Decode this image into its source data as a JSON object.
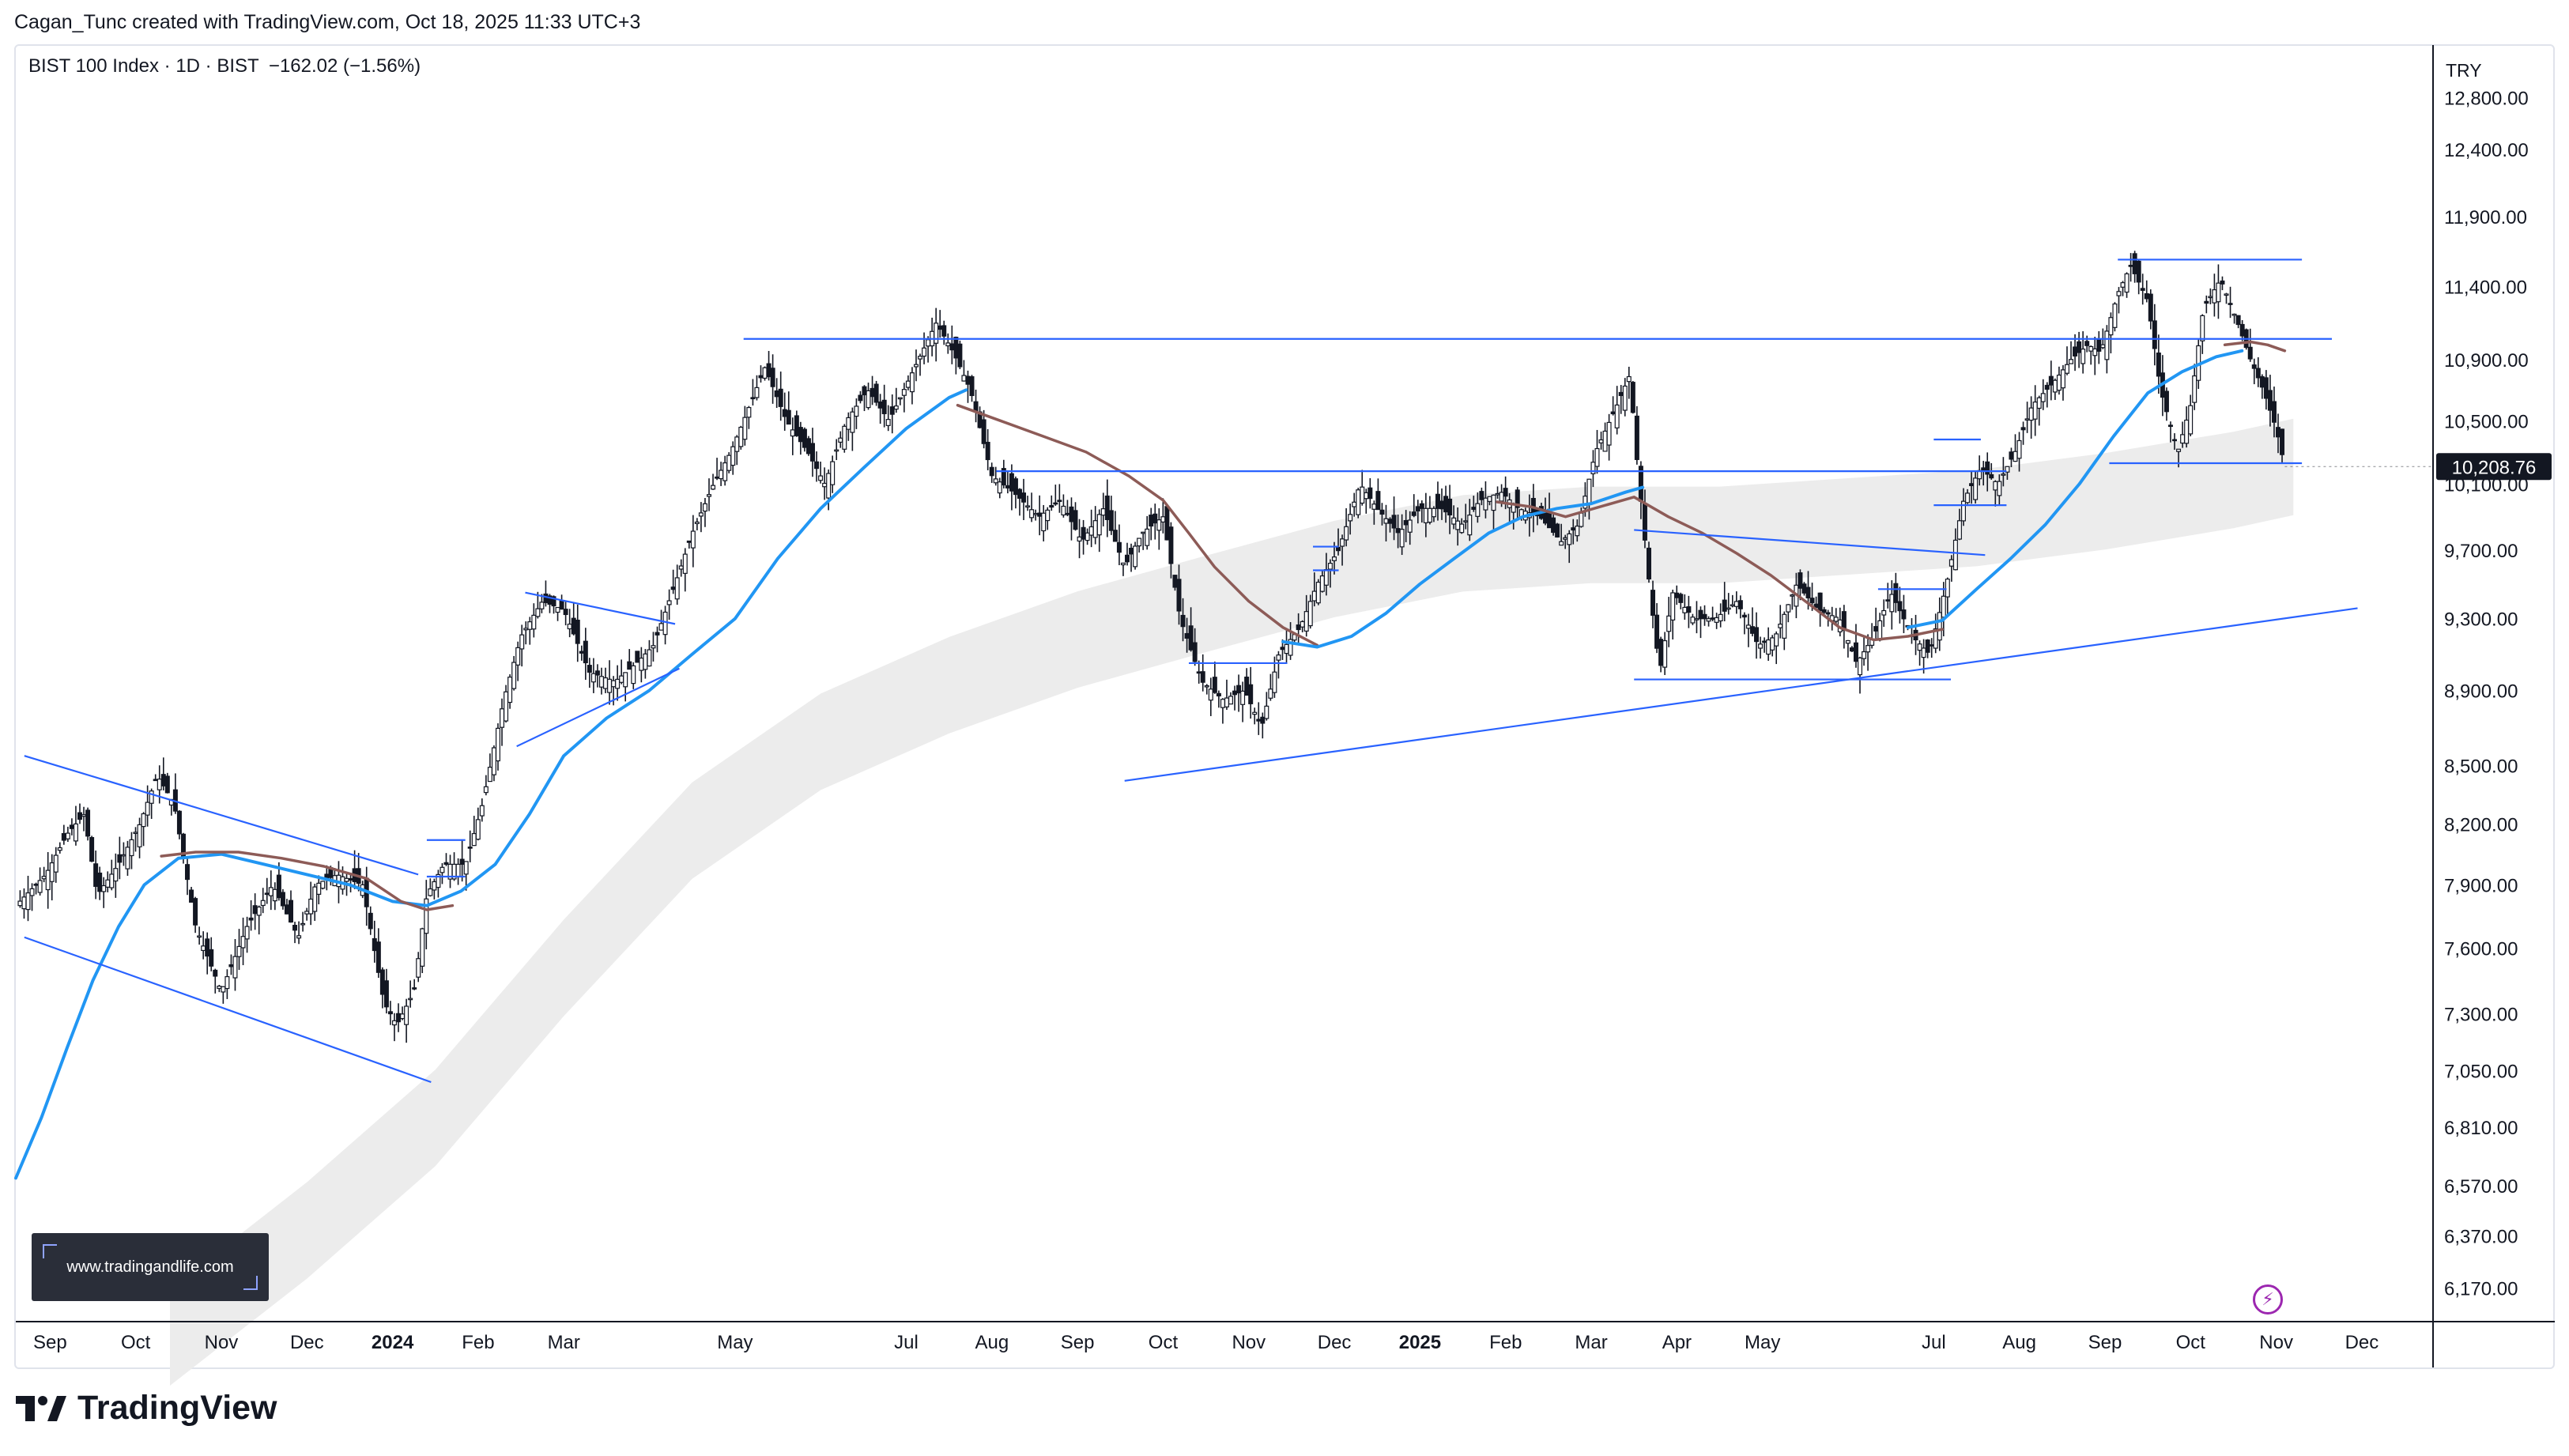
{
  "header": {
    "created_by": "Cagan_Tunc created with TradingView.com, Oct 18, 2025 11:33 UTC+3"
  },
  "legend": {
    "symbol": "BIST 100 Index · 1D · BIST",
    "change": "−162.02 (−1.56%)"
  },
  "currency": "TRY",
  "watermark_text": "www.tradingandlife.com",
  "brand": {
    "name": "TradingView"
  },
  "colors": {
    "ma_fast": "#2196f3",
    "ma_slow": "#8d5b57",
    "trendline": "#2962ff",
    "candle": "#131722",
    "band": "#ececec",
    "price_label_bg": "#131722"
  },
  "chart_data": {
    "type": "candlestick",
    "title": "BIST 100 Index · 1D · BIST",
    "scale": "log",
    "ylim": [
      6050,
      13200
    ],
    "y_ticks": [
      6170,
      6370,
      6570,
      6810,
      7050,
      7300,
      7600,
      7900,
      8200,
      8500,
      8900,
      9300,
      9700,
      10100,
      10500,
      10900,
      11400,
      11900,
      12400,
      12800
    ],
    "y_tick_labels": [
      "6,170.00",
      "6,370.00",
      "6,570.00",
      "6,810.00",
      "7,050.00",
      "7,300.00",
      "7,600.00",
      "7,900.00",
      "8,200.00",
      "8,500.00",
      "8,900.00",
      "9,300.00",
      "9,700.00",
      "10,100.00",
      "10,500.00",
      "10,900.00",
      "11,400.00",
      "11,900.00",
      "12,400.00",
      "12,800.00"
    ],
    "x_range_months": [
      -0.4,
      27.85
    ],
    "x_ticks": [
      {
        "label": "Sep",
        "m": 0
      },
      {
        "label": "Oct",
        "m": 1
      },
      {
        "label": "Nov",
        "m": 2
      },
      {
        "label": "Dec",
        "m": 3
      },
      {
        "label": "2024",
        "m": 4,
        "bold": true
      },
      {
        "label": "Feb",
        "m": 5
      },
      {
        "label": "Mar",
        "m": 6
      },
      {
        "label": "May",
        "m": 8
      },
      {
        "label": "Jul",
        "m": 10
      },
      {
        "label": "Aug",
        "m": 11
      },
      {
        "label": "Sep",
        "m": 12
      },
      {
        "label": "Oct",
        "m": 13
      },
      {
        "label": "Nov",
        "m": 14
      },
      {
        "label": "Dec",
        "m": 15
      },
      {
        "label": "2025",
        "m": 16,
        "bold": true
      },
      {
        "label": "Feb",
        "m": 17
      },
      {
        "label": "Mar",
        "m": 18
      },
      {
        "label": "Apr",
        "m": 19
      },
      {
        "label": "May",
        "m": 20
      },
      {
        "label": "Jul",
        "m": 22
      },
      {
        "label": "Aug",
        "m": 23
      },
      {
        "label": "Sep",
        "m": 24
      },
      {
        "label": "Oct",
        "m": 25
      },
      {
        "label": "Nov",
        "m": 26
      },
      {
        "label": "Dec",
        "m": 27
      }
    ],
    "last_price": 10208.76,
    "last_price_label": "10,208.76",
    "price_path": [
      [
        -0.4,
        7800
      ],
      [
        -0.05,
        7950
      ],
      [
        0.2,
        8150
      ],
      [
        0.4,
        8250
      ],
      [
        0.55,
        7850
      ],
      [
        0.8,
        8000
      ],
      [
        1.05,
        8200
      ],
      [
        1.25,
        8450
      ],
      [
        1.45,
        8300
      ],
      [
        1.7,
        7700
      ],
      [
        2.0,
        7400
      ],
      [
        2.3,
        7700
      ],
      [
        2.6,
        7900
      ],
      [
        2.9,
        7650
      ],
      [
        3.1,
        7900
      ],
      [
        3.35,
        7950
      ],
      [
        3.65,
        7900
      ],
      [
        3.9,
        7350
      ],
      [
        4.05,
        7250
      ],
      [
        4.25,
        7400
      ],
      [
        4.4,
        7850
      ],
      [
        4.6,
        8000
      ],
      [
        4.85,
        8000
      ],
      [
        5.05,
        8300
      ],
      [
        5.3,
        8850
      ],
      [
        5.5,
        9200
      ],
      [
        5.75,
        9400
      ],
      [
        6.0,
        9350
      ],
      [
        6.3,
        9000
      ],
      [
        6.6,
        8950
      ],
      [
        6.85,
        9050
      ],
      [
        7.05,
        9150
      ],
      [
        7.3,
        9500
      ],
      [
        7.5,
        9800
      ],
      [
        7.75,
        10100
      ],
      [
        7.95,
        10300
      ],
      [
        8.1,
        10500
      ],
      [
        8.35,
        10850
      ],
      [
        8.6,
        10500
      ],
      [
        8.85,
        10300
      ],
      [
        9.05,
        10100
      ],
      [
        9.3,
        10500
      ],
      [
        9.55,
        10700
      ],
      [
        9.8,
        10500
      ],
      [
        10.1,
        10850
      ],
      [
        10.35,
        11150
      ],
      [
        10.55,
        10950
      ],
      [
        10.75,
        10700
      ],
      [
        11.0,
        10150
      ],
      [
        11.25,
        10050
      ],
      [
        11.55,
        9900
      ],
      [
        11.8,
        10000
      ],
      [
        12.05,
        9750
      ],
      [
        12.3,
        9950
      ],
      [
        12.55,
        9600
      ],
      [
        12.75,
        9800
      ],
      [
        13.0,
        9900
      ],
      [
        13.2,
        9300
      ],
      [
        13.45,
        8950
      ],
      [
        13.7,
        8850
      ],
      [
        13.95,
        8900
      ],
      [
        14.15,
        8700
      ],
      [
        14.35,
        9100
      ],
      [
        14.6,
        9250
      ],
      [
        14.8,
        9500
      ],
      [
        15.05,
        9700
      ],
      [
        15.3,
        10100
      ],
      [
        15.5,
        9950
      ],
      [
        15.75,
        9800
      ],
      [
        16.0,
        9950
      ],
      [
        16.25,
        9950
      ],
      [
        16.5,
        9850
      ],
      [
        16.7,
        10000
      ],
      [
        16.95,
        10050
      ],
      [
        17.15,
        9950
      ],
      [
        17.4,
        9900
      ],
      [
        17.65,
        9750
      ],
      [
        17.85,
        9850
      ],
      [
        18.05,
        10300
      ],
      [
        18.3,
        10600
      ],
      [
        18.45,
        10800
      ],
      [
        18.55,
        10150
      ],
      [
        18.7,
        9400
      ],
      [
        18.8,
        9000
      ],
      [
        18.95,
        9450
      ],
      [
        19.2,
        9300
      ],
      [
        19.45,
        9300
      ],
      [
        19.7,
        9400
      ],
      [
        19.95,
        9150
      ],
      [
        20.15,
        9200
      ],
      [
        20.4,
        9500
      ],
      [
        20.65,
        9350
      ],
      [
        20.9,
        9300
      ],
      [
        21.1,
        9050
      ],
      [
        21.3,
        9200
      ],
      [
        21.5,
        9450
      ],
      [
        21.75,
        9200
      ],
      [
        21.95,
        9100
      ],
      [
        22.15,
        9500
      ],
      [
        22.35,
        10000
      ],
      [
        22.55,
        10200
      ],
      [
        22.75,
        10100
      ],
      [
        22.95,
        10300
      ],
      [
        23.15,
        10600
      ],
      [
        23.4,
        10750
      ],
      [
        23.6,
        10900
      ],
      [
        23.8,
        11000
      ],
      [
        23.95,
        10950
      ],
      [
        24.15,
        11350
      ],
      [
        24.3,
        11550
      ],
      [
        24.5,
        11300
      ],
      [
        24.65,
        10700
      ],
      [
        24.85,
        10300
      ],
      [
        25.0,
        10600
      ],
      [
        25.15,
        11250
      ],
      [
        25.35,
        11450
      ],
      [
        25.55,
        11150
      ],
      [
        25.7,
        10900
      ],
      [
        25.85,
        10700
      ],
      [
        26.0,
        10450
      ],
      [
        26.1,
        10209
      ]
    ],
    "ma_fast": [
      [
        -0.4,
        6600
      ],
      [
        -0.1,
        6850
      ],
      [
        0.2,
        7150
      ],
      [
        0.5,
        7450
      ],
      [
        0.8,
        7700
      ],
      [
        1.1,
        7900
      ],
      [
        1.5,
        8030
      ],
      [
        2.0,
        8050
      ],
      [
        2.5,
        8000
      ],
      [
        3.0,
        7950
      ],
      [
        3.5,
        7900
      ],
      [
        4.0,
        7820
      ],
      [
        4.4,
        7800
      ],
      [
        4.8,
        7870
      ],
      [
        5.2,
        8000
      ],
      [
        5.6,
        8250
      ],
      [
        6.0,
        8550
      ],
      [
        6.5,
        8750
      ],
      [
        7.0,
        8900
      ],
      [
        7.5,
        9100
      ],
      [
        8.0,
        9300
      ],
      [
        8.5,
        9650
      ],
      [
        9.0,
        9950
      ],
      [
        9.5,
        10200
      ],
      [
        10.0,
        10450
      ],
      [
        10.5,
        10650
      ],
      [
        10.7,
        10700
      ]
    ],
    "ma_slow": [
      [
        1.3,
        8040
      ],
      [
        1.7,
        8060
      ],
      [
        2.2,
        8060
      ],
      [
        2.7,
        8030
      ],
      [
        3.2,
        7990
      ],
      [
        3.7,
        7930
      ],
      [
        4.1,
        7820
      ],
      [
        4.4,
        7780
      ],
      [
        4.7,
        7800
      ]
    ],
    "ma_slow_2": [
      [
        10.6,
        10600
      ],
      [
        11.1,
        10500
      ],
      [
        11.6,
        10400
      ],
      [
        12.1,
        10300
      ],
      [
        12.6,
        10150
      ],
      [
        13.0,
        10000
      ],
      [
        13.3,
        9800
      ],
      [
        13.6,
        9600
      ],
      [
        14.0,
        9400
      ],
      [
        14.4,
        9250
      ],
      [
        14.8,
        9150
      ]
    ],
    "ma_fast_2": [
      [
        14.4,
        9170
      ],
      [
        14.8,
        9140
      ],
      [
        15.2,
        9200
      ],
      [
        15.6,
        9330
      ],
      [
        16.0,
        9500
      ],
      [
        16.4,
        9650
      ],
      [
        16.8,
        9800
      ],
      [
        17.2,
        9900
      ],
      [
        17.6,
        9950
      ],
      [
        18.0,
        9980
      ],
      [
        18.4,
        10050
      ],
      [
        18.6,
        10080
      ]
    ],
    "ma_slow_3": [
      [
        16.9,
        9990
      ],
      [
        17.3,
        9960
      ],
      [
        17.7,
        9900
      ],
      [
        18.1,
        9960
      ],
      [
        18.5,
        10020
      ],
      [
        18.9,
        9900
      ],
      [
        19.3,
        9800
      ],
      [
        19.7,
        9680
      ],
      [
        20.1,
        9550
      ],
      [
        20.5,
        9400
      ],
      [
        20.9,
        9250
      ],
      [
        21.3,
        9180
      ],
      [
        21.7,
        9200
      ],
      [
        22.1,
        9240
      ]
    ],
    "ma_fast_3": [
      [
        21.7,
        9250
      ],
      [
        22.1,
        9290
      ],
      [
        22.5,
        9470
      ],
      [
        22.9,
        9650
      ],
      [
        23.3,
        9850
      ],
      [
        23.7,
        10100
      ],
      [
        24.1,
        10400
      ],
      [
        24.5,
        10680
      ],
      [
        24.9,
        10820
      ],
      [
        25.3,
        10920
      ],
      [
        25.6,
        10960
      ]
    ],
    "ma_slow_4": [
      [
        25.4,
        11000
      ],
      [
        25.7,
        11020
      ],
      [
        25.9,
        11000
      ],
      [
        26.1,
        10960
      ]
    ],
    "band_center": [
      [
        1.4,
        5900
      ],
      [
        3.0,
        6300
      ],
      [
        4.5,
        6750
      ],
      [
        6.0,
        7400
      ],
      [
        7.5,
        8050
      ],
      [
        9.0,
        8500
      ],
      [
        10.5,
        8800
      ],
      [
        12.0,
        9050
      ],
      [
        13.5,
        9250
      ],
      [
        15.0,
        9450
      ],
      [
        16.5,
        9600
      ],
      [
        18.0,
        9650
      ],
      [
        19.5,
        9650
      ],
      [
        21.0,
        9700
      ],
      [
        22.5,
        9750
      ],
      [
        24.0,
        9850
      ],
      [
        25.5,
        9980
      ],
      [
        26.2,
        10060
      ]
    ],
    "trendlines": [
      {
        "name": "channel-upper",
        "from": [
          -0.3,
          8550
        ],
        "to": [
          4.3,
          7950
        ]
      },
      {
        "name": "channel-lower",
        "from": [
          -0.3,
          7650
        ],
        "to": [
          4.45,
          7000
        ]
      },
      {
        "name": "pennant-upper",
        "from": [
          5.55,
          9450
        ],
        "to": [
          7.3,
          9270
        ]
      },
      {
        "name": "pennant-lower",
        "from": [
          5.45,
          8600
        ],
        "to": [
          7.35,
          9020
        ]
      },
      {
        "name": "resistance-11000",
        "from": [
          8.1,
          11040
        ],
        "to": [
          26.65,
          11040
        ]
      },
      {
        "name": "support-10180",
        "from": [
          11.05,
          10180
        ],
        "to": [
          22.85,
          10180
        ]
      },
      {
        "name": "long-support",
        "from": [
          12.55,
          8420
        ],
        "to": [
          26.95,
          9360
        ]
      },
      {
        "name": "wedge-upper",
        "from": [
          18.5,
          9820
        ],
        "to": [
          22.6,
          9670
        ]
      },
      {
        "name": "range-low",
        "from": [
          18.5,
          8960
        ],
        "to": [
          22.2,
          8960
        ]
      },
      {
        "name": "box-jan-top",
        "from": [
          4.4,
          8120
        ],
        "to": [
          4.85,
          8120
        ]
      },
      {
        "name": "box-jan-bottom",
        "from": [
          4.4,
          7940
        ],
        "to": [
          4.85,
          7940
        ]
      },
      {
        "name": "box-nov-top",
        "from": [
          13.3,
          9050
        ],
        "to": [
          14.45,
          9050
        ]
      },
      {
        "name": "box-dec-top",
        "from": [
          14.75,
          9720
        ],
        "to": [
          15.05,
          9720
        ]
      },
      {
        "name": "box-dec-bottom",
        "from": [
          14.75,
          9580
        ],
        "to": [
          15.05,
          9580
        ]
      },
      {
        "name": "box-jun-mid",
        "from": [
          21.35,
          9470
        ],
        "to": [
          22.15,
          9470
        ]
      },
      {
        "name": "box-jul-top",
        "from": [
          22.0,
          10380
        ],
        "to": [
          22.55,
          10380
        ]
      },
      {
        "name": "box-jul-bottom",
        "from": [
          22.0,
          9970
        ],
        "to": [
          22.85,
          9970
        ]
      },
      {
        "name": "peak-line",
        "from": [
          24.15,
          11590
        ],
        "to": [
          26.3,
          11590
        ]
      },
      {
        "name": "support-10230",
        "from": [
          24.05,
          10230
        ],
        "to": [
          26.3,
          10230
        ]
      }
    ]
  }
}
